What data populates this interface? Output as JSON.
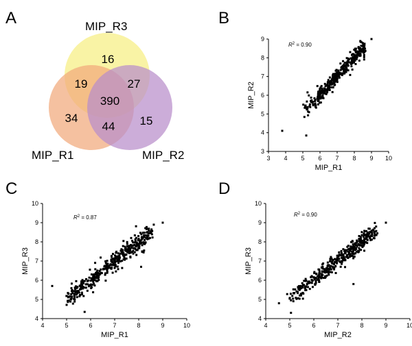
{
  "panels": {
    "a": "A",
    "b": "B",
    "c": "C",
    "d": "D"
  },
  "chart_data": [
    {
      "type": "venn",
      "sets": [
        "MIP_R3",
        "MIP_R1",
        "MIP_R2"
      ],
      "regions": {
        "r3_only": 16,
        "r1_r3": 19,
        "r2_r3": 27,
        "all": 390,
        "r1_only": 34,
        "r1_r2": 44,
        "r2_only": 15
      },
      "colors": {
        "MIP_R3": "#f7ee82",
        "MIP_R1": "#f1a97c",
        "MIP_R2": "#b98ecb"
      }
    },
    {
      "type": "scatter",
      "xlabel": "MIP_R1",
      "ylabel": "MIP_R2",
      "r2_base": "R",
      "r2_sup": "2",
      "r2_value": " = 0.90",
      "xlim": [
        3,
        10
      ],
      "ylim": [
        3,
        9
      ],
      "xticks": [
        3,
        4,
        5,
        6,
        7,
        8,
        9,
        10
      ],
      "yticks": [
        3,
        4,
        5,
        6,
        7,
        8,
        9
      ],
      "n_points": 350,
      "spread": 0.22,
      "seed": 11,
      "outliers": [
        [
          3.8,
          4.1
        ],
        [
          9.0,
          9.0
        ],
        [
          5.2,
          3.85
        ]
      ]
    },
    {
      "type": "scatter",
      "xlabel": "MIP_R1",
      "ylabel": "MIP_R3",
      "r2_base": "R",
      "r2_sup": "2",
      "r2_value": " = 0.87",
      "xlim": [
        4,
        10
      ],
      "ylim": [
        4,
        10
      ],
      "xticks": [
        4,
        5,
        6,
        7,
        8,
        9,
        10
      ],
      "yticks": [
        4,
        5,
        6,
        7,
        8,
        9,
        10
      ],
      "n_points": 400,
      "spread": 0.25,
      "seed": 23,
      "outliers": [
        [
          9.0,
          9.0
        ],
        [
          4.4,
          5.7
        ],
        [
          5.75,
          4.35
        ],
        [
          8.1,
          6.7
        ]
      ]
    },
    {
      "type": "scatter",
      "xlabel": "MIP_R2",
      "ylabel": "MIP_R3",
      "r2_base": "R",
      "r2_sup": "2",
      "r2_value": " = 0.90",
      "xlim": [
        4,
        10
      ],
      "ylim": [
        4,
        10
      ],
      "xticks": [
        4,
        5,
        6,
        7,
        8,
        9,
        10
      ],
      "yticks": [
        4,
        5,
        6,
        7,
        8,
        9,
        10
      ],
      "n_points": 400,
      "spread": 0.22,
      "seed": 37,
      "outliers": [
        [
          9.0,
          9.0
        ],
        [
          4.55,
          4.8
        ],
        [
          5.05,
          4.3
        ],
        [
          7.65,
          5.8
        ]
      ]
    }
  ]
}
